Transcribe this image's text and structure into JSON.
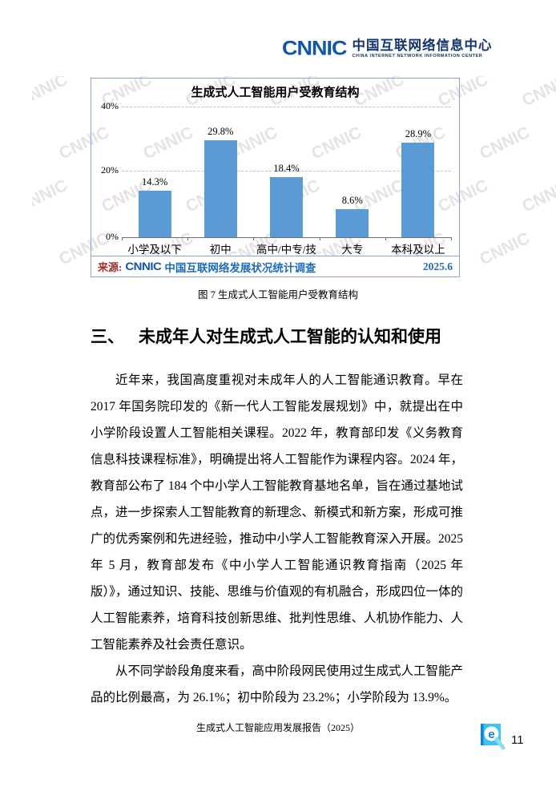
{
  "header": {
    "logo_text": "CNNIC",
    "org_cn": "中国互联网络信息中心",
    "org_en": "CHINA INTERNET NETWORK INFORMATION CENTER"
  },
  "chart_data": {
    "type": "bar",
    "title": "生成式人工智能用户受教育结构",
    "categories": [
      "小学及以下",
      "初中",
      "高中/中专/技校",
      "大专",
      "本科及以上"
    ],
    "values": [
      14.3,
      29.8,
      18.4,
      8.6,
      28.9
    ],
    "value_labels": [
      "14.3%",
      "29.8%",
      "18.4%",
      "8.6%",
      "28.9%"
    ],
    "ylim": [
      0,
      40
    ],
    "yticks": [
      0,
      20,
      40
    ],
    "ytick_labels": [
      "0%",
      "20%",
      "40%"
    ],
    "grid": "horizontal dashed at 20% and 40%",
    "legend": "none",
    "bar_color": "#5B9BD5",
    "watermark": "CNNIC",
    "source_prefix": "来源:",
    "source_logo": "CNNIC",
    "source_text": "中国互联网络发展状况统计调查",
    "source_date": "2025.6"
  },
  "figure_caption": "图 7 生成式人工智能用户受教育结构",
  "section": {
    "number": "三、",
    "title": "未成年人对生成式人工智能的认知和使用"
  },
  "paragraphs": [
    "近年来，我国高度重视对未成年人的人工智能通识教育。早在 2017 年国务院印发的《新一代人工智能发展规划》中，就提出在中小学阶段设置人工智能相关课程。2022 年，教育部印发《义务教育信息科技课程标准》，明确提出将人工智能作为课程内容。2024 年，教育部公布了 184 个中小学人工智能教育基地名单，旨在通过基地试点，进一步探索人工智能教育的新理念、新模式和新方案，形成可推广的优秀案例和先进经验，推动中小学人工智能教育深入开展。2025 年 5 月，教育部发布《中小学人工智能通识教育指南（2025 年版）》，通过知识、技能、思维与价值观的有机融合，形成四位一体的人工智能素养，培育科技创新思维、批判性思维、人机协作能力、人工智能素养及社会责任意识。",
    "从不同学龄段角度来看，高中阶段网民使用过生成式人工智能产品的比例最高，为 26.1%；初中阶段为 23.2%；小学阶段为 13.9%。"
  ],
  "footer": {
    "report_title": "生成式人工智能应用发展报告（2025）",
    "page_number": "11",
    "logo_icon": "magnifier-e-icon"
  },
  "colors": {
    "bar": "#5B9BD5",
    "chart_border": "#8CA3D9",
    "logo_blue": "#1057AB",
    "source_blue": "#1F6CB5",
    "source_red": "#9E2F2A",
    "footer_icon_cyan": "#3FC3EF"
  }
}
